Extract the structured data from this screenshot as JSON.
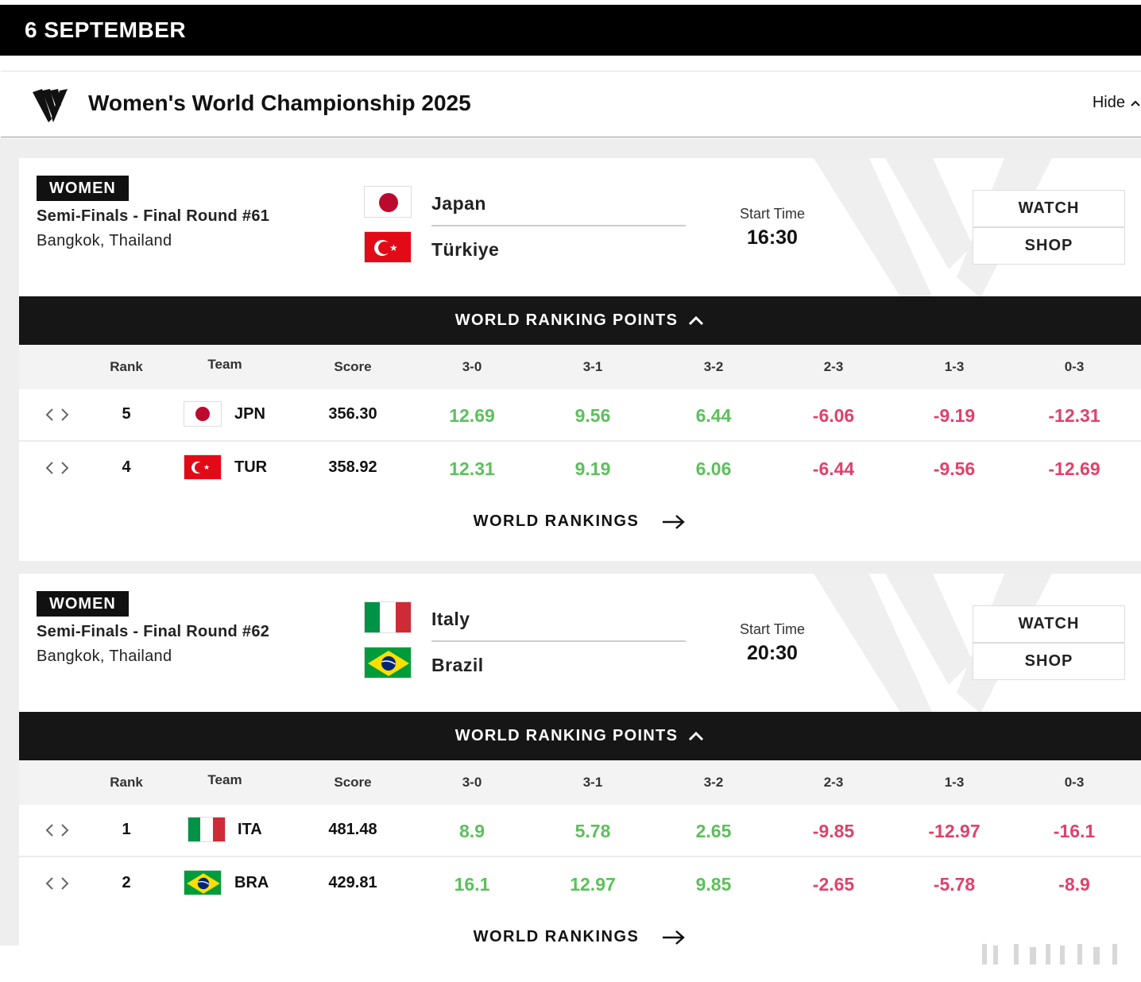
{
  "date": "6 SEPTEMBER",
  "competition": {
    "title": "Women's World Championship 2025",
    "hide_label": "Hide"
  },
  "table_headers": [
    "Rank",
    "Team",
    "Score",
    "3-0",
    "3-1",
    "3-2",
    "2-3",
    "1-3",
    "0-3"
  ],
  "matches": [
    {
      "gender": "WOMEN",
      "round": "Semi-Finals - Final Round #61",
      "venue": "Bangkok, Thailand",
      "team1": "Japan",
      "team2": "Türkiye",
      "start_label": "Start Time",
      "start_time": "16:30",
      "watch_label": "WATCH",
      "shop_label": "SHOP",
      "wrp_label": "WORLD RANKING POINTS",
      "rows": [
        {
          "rank": "5",
          "code": "JPN",
          "score": "356.30",
          "pts": [
            "12.69",
            "9.56",
            "6.44",
            "-6.06",
            "-9.19",
            "-12.31"
          ]
        },
        {
          "rank": "4",
          "code": "TUR",
          "score": "358.92",
          "pts": [
            "12.31",
            "9.19",
            "6.06",
            "-6.44",
            "-9.56",
            "-12.69"
          ]
        }
      ],
      "rankings_link": "WORLD RANKINGS"
    },
    {
      "gender": "WOMEN",
      "round": "Semi-Finals - Final Round #62",
      "venue": "Bangkok, Thailand",
      "team1": "Italy",
      "team2": "Brazil",
      "start_label": "Start Time",
      "start_time": "20:30",
      "watch_label": "WATCH",
      "shop_label": "SHOP",
      "wrp_label": "WORLD RANKING POINTS",
      "rows": [
        {
          "rank": "1",
          "code": "ITA",
          "score": "481.48",
          "pts": [
            "8.9",
            "5.78",
            "2.65",
            "-9.85",
            "-12.97",
            "-16.1"
          ]
        },
        {
          "rank": "2",
          "code": "BRA",
          "score": "429.81",
          "pts": [
            "16.1",
            "12.97",
            "9.85",
            "-2.65",
            "-5.78",
            "-8.9"
          ]
        }
      ],
      "rankings_link": "WORLD RANKINGS"
    }
  ],
  "colors": {
    "positive": "#5cc05c",
    "negative": "#e0416a",
    "header_bg": "#000000"
  }
}
